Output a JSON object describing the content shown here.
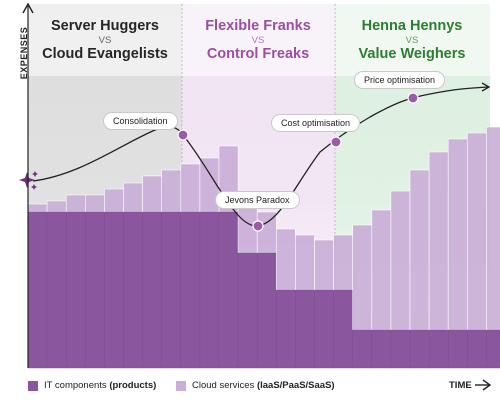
{
  "eras": [
    {
      "line1": "Server Huggers",
      "vs": "VS",
      "line2": "Cloud Evangelists",
      "color": "#262626",
      "bg": "#dcdcdc"
    },
    {
      "line1": "Flexible Franks",
      "vs": "VS",
      "line2": "Control Freaks",
      "color": "#9b4fa0",
      "bg": "#f0e2f2"
    },
    {
      "line1": "Henna Hennys",
      "vs": "VS",
      "line2": "Value Weighers",
      "color": "#2e7d32",
      "bg": "#dcefdf"
    }
  ],
  "events": [
    {
      "label": "Consolidation"
    },
    {
      "label": "Jevons Paradox"
    },
    {
      "label": "Cost optimisation"
    },
    {
      "label": "Price optimisation"
    }
  ],
  "legend": {
    "it": {
      "label": "IT components",
      "bold": "(products)",
      "color": "#8a569e"
    },
    "cloud": {
      "label": "Cloud services",
      "bold": "(IaaS/PaaS/SaaS)",
      "color": "#c9aed7"
    }
  },
  "axes": {
    "y": "EXPENSES",
    "x": "TIME"
  },
  "colors": {
    "curve": "#222222",
    "marker": "#9c5ba8"
  }
}
